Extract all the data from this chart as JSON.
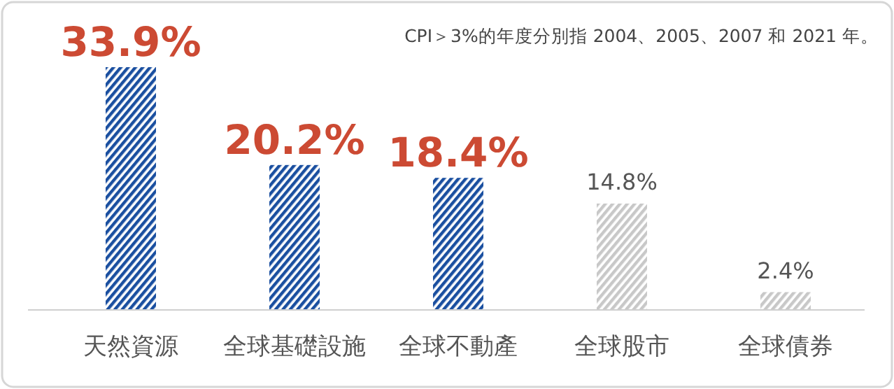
{
  "chart_data": {
    "type": "bar",
    "relative": false,
    "categories": [
      "天然資源",
      "全球基礎設施",
      "全球不動產",
      "全球股市",
      "全球債券"
    ],
    "values": [
      33.9,
      20.2,
      18.4,
      14.8,
      2.4
    ],
    "value_labels": [
      "33.9%",
      "20.2%",
      "18.4%",
      "14.8%",
      "2.4%"
    ],
    "colors": [
      "#1a4fa0",
      "#1a4fa0",
      "#1a4fa0",
      "#c8c8c8",
      "#c8c8c8"
    ],
    "annotations": [
      "CPI＞3%的年度分別指 2004、2005、2007 和 2021 年。"
    ]
  }
}
